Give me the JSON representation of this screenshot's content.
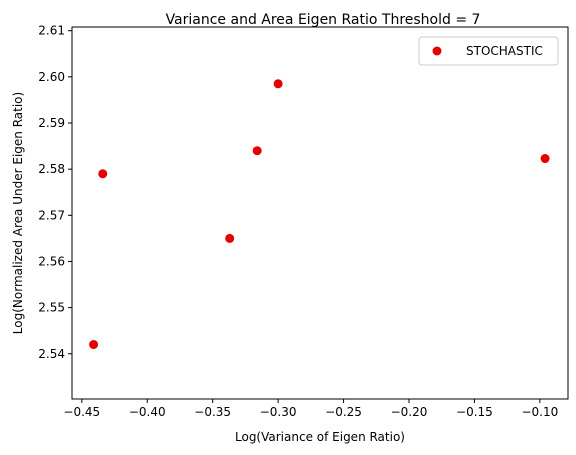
{
  "chart_data": {
    "type": "scatter",
    "title": "Variance and  Area Eigen Ratio Threshold = 7",
    "xlabel": "Log(Variance of Eigen Ratio)",
    "ylabel": "Log(Normalized Area Under Eigen Ratio)",
    "xlim": [
      -0.4575,
      -0.0785
    ],
    "ylim": [
      2.5302,
      2.6108
    ],
    "xticks": [
      -0.45,
      -0.4,
      -0.35,
      -0.3,
      -0.25,
      -0.2,
      -0.15,
      -0.1
    ],
    "xtick_labels": [
      "−0.45",
      "−0.40",
      "−0.35",
      "−0.30",
      "−0.25",
      "−0.20",
      "−0.15",
      "−0.10"
    ],
    "yticks": [
      2.54,
      2.55,
      2.56,
      2.57,
      2.58,
      2.59,
      2.6,
      2.61
    ],
    "ytick_labels": [
      "2.54",
      "2.55",
      "2.56",
      "2.57",
      "2.58",
      "2.59",
      "2.60",
      "2.61"
    ],
    "grid": false,
    "legend_position": "top-right",
    "series": [
      {
        "name": "STOCHASTIC",
        "color": "#e60000",
        "points": [
          {
            "x": -0.441,
            "y": 2.542
          },
          {
            "x": -0.434,
            "y": 2.579
          },
          {
            "x": -0.337,
            "y": 2.565
          },
          {
            "x": -0.316,
            "y": 2.584
          },
          {
            "x": -0.3,
            "y": 2.5985
          },
          {
            "x": -0.096,
            "y": 2.5823
          }
        ]
      }
    ]
  }
}
